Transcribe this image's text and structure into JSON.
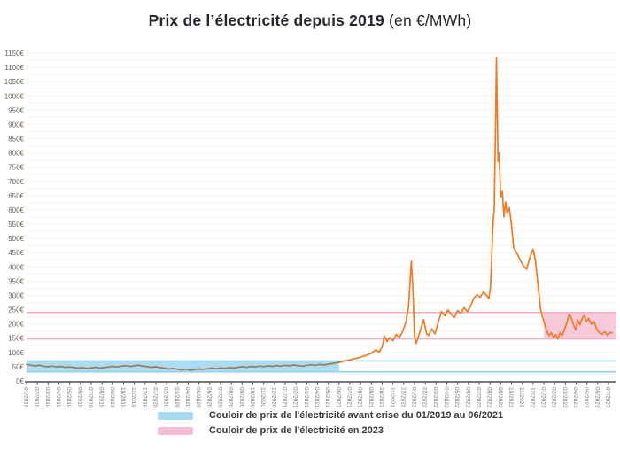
{
  "title": {
    "main": "Prix de l’électricité depuis 2019",
    "suffix": " (en €/MWh)"
  },
  "colors": {
    "line_orange": "#ef7b24",
    "line_in_blue_band": "#9e7c51",
    "blue_band_fill": "#abdcf3",
    "blue_band_edge": "#8fd2ef",
    "pink_band_fill": "#f7cadb",
    "pink_band_edge": "#f3adc7",
    "gridline": "#f6f3f4",
    "axis": "#4f4f4f",
    "x_label": "#7a7a7a",
    "y_label": "#6d6156"
  },
  "chart_data": {
    "type": "line",
    "title": "Prix de l’électricité depuis 2019 (en €/MWh)",
    "y_axis": {
      "min": 0,
      "max": 1150,
      "label_step": 50,
      "grid_step": 25,
      "unit": "€"
    },
    "x_axis": {
      "labels": [
        "01/2019",
        "02/2019",
        "03/2019",
        "04/2019",
        "05/2019",
        "06/2019",
        "07/2019",
        "08/2019",
        "09/2019",
        "10/2019",
        "11/2019",
        "12/2019",
        "01/2020",
        "02/2020",
        "03/2020",
        "04/2020",
        "05/2020",
        "06/2020",
        "07/2020",
        "08/2020",
        "09/2020",
        "10/2020",
        "11/2020",
        "12/2020",
        "01/2021",
        "02/2021",
        "03/2021",
        "04/2021",
        "05/2021",
        "06/2021",
        "07/2021",
        "08/2021",
        "09/2021",
        "10/2021",
        "11/2021",
        "12/2021",
        "01/2022",
        "02/2022",
        "03/2022",
        "04/2022",
        "05/2022",
        "06/2022",
        "07/2022",
        "08/2022",
        "09/2022",
        "10/2022",
        "11/2022",
        "12/2022",
        "01/2023",
        "02/2023",
        "03/2023",
        "04/2023",
        "05/2023",
        "06/2023",
        "07/2023"
      ]
    },
    "bands": [
      {
        "name": "couloir-avant-crise",
        "label": "Couloir de prix de l’électricité avant crise du 01/2019 au 06/2021",
        "low": 32,
        "high": 70,
        "fill_from_month": 0,
        "fill_to_month": 29,
        "fill": "#abdcf3",
        "edge": "#8fd2ef"
      },
      {
        "name": "couloir-2023",
        "label": "Couloir de prix de l’électricité en 2023",
        "low": 148,
        "high": 240,
        "fill_from_month": 48,
        "fill_to_month": 54.73,
        "fill": "#f7cadb",
        "edge": "#f3adc7"
      }
    ],
    "series": [
      {
        "name": "Prix de l’électricité",
        "color": "#ef7b24",
        "color_pre_crisis": "#9e7c51",
        "split_month": 29.2,
        "points": [
          [
            0,
            58
          ],
          [
            0.4,
            55
          ],
          [
            0.8,
            53
          ],
          [
            1.2,
            55
          ],
          [
            1.6,
            51
          ],
          [
            2,
            50
          ],
          [
            2.4,
            52
          ],
          [
            2.8,
            49
          ],
          [
            3.2,
            51
          ],
          [
            3.6,
            48
          ],
          [
            4,
            49
          ],
          [
            4.4,
            47
          ],
          [
            4.8,
            45
          ],
          [
            5.2,
            47
          ],
          [
            5.6,
            44
          ],
          [
            6,
            46
          ],
          [
            6.4,
            48
          ],
          [
            6.8,
            45
          ],
          [
            7.2,
            47
          ],
          [
            7.6,
            49
          ],
          [
            8,
            51
          ],
          [
            8.4,
            49
          ],
          [
            8.8,
            52
          ],
          [
            9.2,
            54
          ],
          [
            9.6,
            51
          ],
          [
            10,
            53
          ],
          [
            10.4,
            55
          ],
          [
            10.8,
            52
          ],
          [
            11.2,
            50
          ],
          [
            11.6,
            48
          ],
          [
            12,
            50
          ],
          [
            12.4,
            47
          ],
          [
            12.8,
            45
          ],
          [
            13.2,
            42
          ],
          [
            13.6,
            44
          ],
          [
            14,
            41
          ],
          [
            14.4,
            39
          ],
          [
            14.8,
            41
          ],
          [
            15.2,
            38
          ],
          [
            15.6,
            40
          ],
          [
            16,
            42
          ],
          [
            16.4,
            40
          ],
          [
            16.8,
            43
          ],
          [
            17.2,
            45
          ],
          [
            17.6,
            43
          ],
          [
            18,
            46
          ],
          [
            18.4,
            44
          ],
          [
            18.8,
            47
          ],
          [
            19.2,
            45
          ],
          [
            19.6,
            48
          ],
          [
            20,
            50
          ],
          [
            20.4,
            48
          ],
          [
            20.8,
            51
          ],
          [
            21.2,
            49
          ],
          [
            21.6,
            52
          ],
          [
            22,
            50
          ],
          [
            22.4,
            53
          ],
          [
            22.8,
            51
          ],
          [
            23.2,
            54
          ],
          [
            23.6,
            52
          ],
          [
            24,
            55
          ],
          [
            24.4,
            53
          ],
          [
            24.8,
            56
          ],
          [
            25.2,
            54
          ],
          [
            25.6,
            52
          ],
          [
            26,
            55
          ],
          [
            26.4,
            57
          ],
          [
            26.8,
            55
          ],
          [
            27.2,
            58
          ],
          [
            27.6,
            56
          ],
          [
            28,
            59
          ],
          [
            28.4,
            61
          ],
          [
            28.8,
            64
          ],
          [
            29.2,
            67
          ],
          [
            29.6,
            71
          ],
          [
            30,
            74
          ],
          [
            30.4,
            78
          ],
          [
            30.8,
            81
          ],
          [
            31.2,
            86
          ],
          [
            31.6,
            91
          ],
          [
            32,
            97
          ],
          [
            32.4,
            109
          ],
          [
            32.7,
            101
          ],
          [
            33,
            119
          ],
          [
            33.2,
            158
          ],
          [
            33.45,
            138
          ],
          [
            33.7,
            152
          ],
          [
            34,
            141
          ],
          [
            34.3,
            163
          ],
          [
            34.6,
            153
          ],
          [
            34.9,
            173
          ],
          [
            35.2,
            206
          ],
          [
            35.45,
            262
          ],
          [
            35.7,
            420
          ],
          [
            35.85,
            320
          ],
          [
            36,
            158
          ],
          [
            36.15,
            131
          ],
          [
            36.5,
            172
          ],
          [
            36.85,
            216
          ],
          [
            37.1,
            168
          ],
          [
            37.3,
            159
          ],
          [
            37.6,
            183
          ],
          [
            37.9,
            165
          ],
          [
            38.2,
            206
          ],
          [
            38.5,
            243
          ],
          [
            38.8,
            229
          ],
          [
            39.1,
            249
          ],
          [
            39.4,
            233
          ],
          [
            39.7,
            223
          ],
          [
            40,
            247
          ],
          [
            40.3,
            237
          ],
          [
            40.6,
            257
          ],
          [
            40.9,
            243
          ],
          [
            41.2,
            263
          ],
          [
            41.5,
            289
          ],
          [
            41.8,
            303
          ],
          [
            42.1,
            293
          ],
          [
            42.4,
            313
          ],
          [
            42.7,
            299
          ],
          [
            42.9,
            289
          ],
          [
            43.05,
            330
          ],
          [
            43.2,
            470
          ],
          [
            43.3,
            560
          ],
          [
            43.4,
            605
          ],
          [
            43.5,
            850
          ],
          [
            43.6,
            1135
          ],
          [
            43.75,
            770
          ],
          [
            43.85,
            800
          ],
          [
            44,
            645
          ],
          [
            44.15,
            665
          ],
          [
            44.3,
            575
          ],
          [
            44.45,
            628
          ],
          [
            44.6,
            588
          ],
          [
            44.8,
            608
          ],
          [
            45,
            548
          ],
          [
            45.2,
            468
          ],
          [
            45.5,
            448
          ],
          [
            45.8,
            425
          ],
          [
            46.1,
            405
          ],
          [
            46.4,
            392
          ],
          [
            46.7,
            432
          ],
          [
            47,
            462
          ],
          [
            47.2,
            428
          ],
          [
            47.45,
            340
          ],
          [
            47.7,
            250
          ],
          [
            47.9,
            222
          ],
          [
            48.1,
            196
          ],
          [
            48.3,
            173
          ],
          [
            48.5,
            159
          ],
          [
            48.7,
            169
          ],
          [
            48.9,
            153
          ],
          [
            49.1,
            163
          ],
          [
            49.3,
            147
          ],
          [
            49.5,
            169
          ],
          [
            49.7,
            159
          ],
          [
            49.9,
            179
          ],
          [
            50.1,
            199
          ],
          [
            50.35,
            233
          ],
          [
            50.55,
            223
          ],
          [
            50.75,
            197
          ],
          [
            50.95,
            179
          ],
          [
            51.15,
            213
          ],
          [
            51.35,
            197
          ],
          [
            51.55,
            219
          ],
          [
            51.75,
            229
          ],
          [
            51.95,
            209
          ],
          [
            52.15,
            219
          ],
          [
            52.4,
            199
          ],
          [
            52.65,
            209
          ],
          [
            52.9,
            183
          ],
          [
            53.15,
            169
          ],
          [
            53.4,
            163
          ],
          [
            53.65,
            173
          ],
          [
            53.9,
            160
          ],
          [
            54.15,
            170
          ],
          [
            54.35,
            168
          ]
        ]
      }
    ],
    "legend": [
      {
        "color": "#a5daf3",
        "label": "Couloir de prix de l'électricité avant crise du 01/2019 au 06/2021"
      },
      {
        "color": "#f5bdd3",
        "label": "Couloir de prix de l'électricité en 2023"
      }
    ],
    "layout": {
      "grid": true,
      "legend_position": "bottom"
    }
  }
}
